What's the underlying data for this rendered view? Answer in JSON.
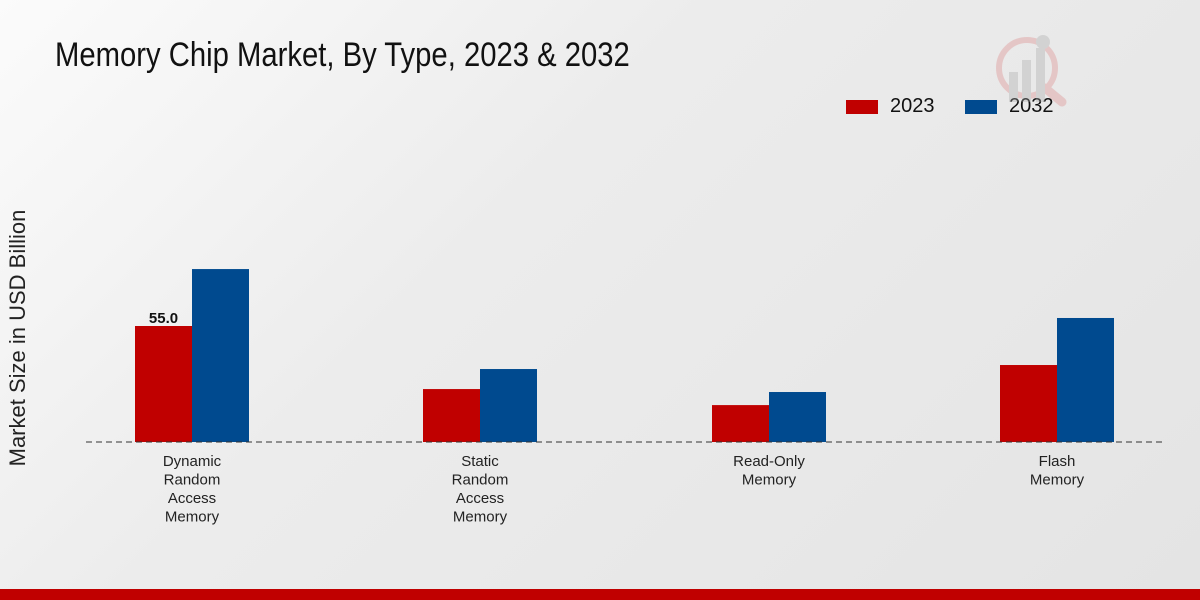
{
  "chart_data": {
    "type": "bar",
    "title": "Memory Chip Market, By Type, 2023 & 2032",
    "xlabel": "",
    "ylabel": "Market Size in USD Billion",
    "categories": [
      [
        "Dynamic",
        "Random",
        "Access",
        "Memory"
      ],
      [
        "Static",
        "Random",
        "Access",
        "Memory"
      ],
      [
        "Read-Only",
        "Memory"
      ],
      [
        "Flash",
        "Memory"
      ]
    ],
    "series": [
      {
        "name": "2023",
        "color": "#c00000",
        "values": [
          55.0,
          25.1,
          17.5,
          36.5
        ]
      },
      {
        "name": "2032",
        "color": "#004a8f",
        "values": [
          82.0,
          34.6,
          23.7,
          58.8
        ]
      }
    ],
    "data_labels": [
      {
        "series": 0,
        "index": 0,
        "text": "55.0"
      }
    ],
    "ylim": [
      0,
      160
    ],
    "grid": false,
    "legend_position": "top-right"
  }
}
